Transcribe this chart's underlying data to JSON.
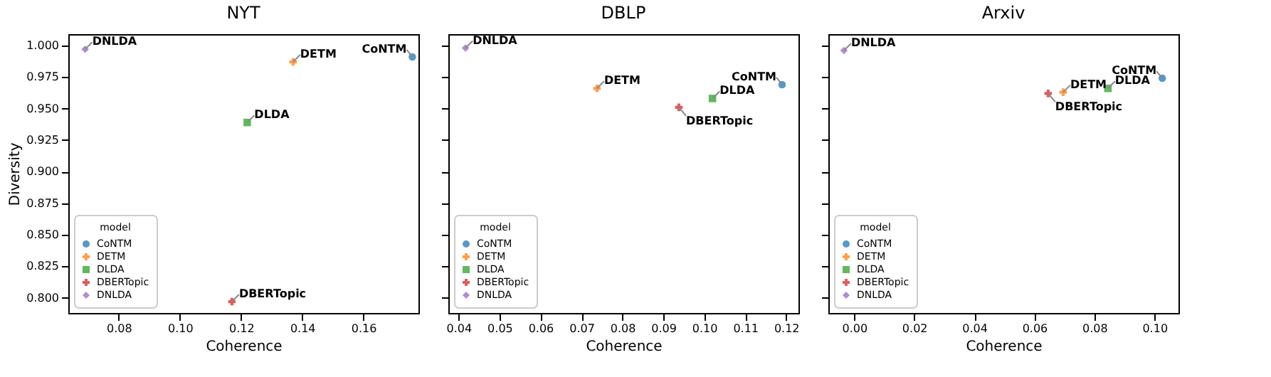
{
  "chart_data": [
    {
      "type": "scatter",
      "title": "NYT",
      "xlabel": "Coherence",
      "ylabel": "Diversity",
      "legend_title": "model",
      "legend": "bottom left",
      "grid": false,
      "xlim": [
        0.0635,
        0.178
      ],
      "xticks": [
        {
          "value": 0.08,
          "label": "0.08"
        },
        {
          "value": 0.1,
          "label": "0.10"
        },
        {
          "value": 0.12,
          "label": "0.12"
        },
        {
          "value": 0.14,
          "label": "0.14"
        },
        {
          "value": 0.16,
          "label": "0.16"
        }
      ],
      "ylim": [
        0.788,
        1.009
      ],
      "yticks": [
        {
          "value": 0.8,
          "label": "0.800"
        },
        {
          "value": 0.825,
          "label": "0.825"
        },
        {
          "value": 0.85,
          "label": "0.850"
        },
        {
          "value": 0.875,
          "label": "0.875"
        },
        {
          "value": 0.9,
          "label": "0.900"
        },
        {
          "value": 0.925,
          "label": "0.925"
        },
        {
          "value": 0.95,
          "label": "0.950"
        },
        {
          "value": 0.975,
          "label": "0.975"
        },
        {
          "value": 1.0,
          "label": "1.000"
        }
      ],
      "series": [
        {
          "name": "CoNTM",
          "color": "#1f77b4",
          "marker": "circle",
          "x": [
            0.176
          ],
          "values": [
            0.991
          ]
        },
        {
          "name": "DETM",
          "color": "#ff7f0e",
          "marker": "cross",
          "x": [
            0.137
          ],
          "values": [
            0.987
          ]
        },
        {
          "name": "DLDA",
          "color": "#2ca02c",
          "marker": "square",
          "x": [
            0.122
          ],
          "values": [
            0.939
          ]
        },
        {
          "name": "DBERTopic",
          "color": "#d62728",
          "marker": "cross",
          "x": [
            0.117
          ],
          "values": [
            0.797
          ]
        },
        {
          "name": "DNLDA",
          "color": "#9467bd",
          "marker": "diamond",
          "x": [
            0.069
          ],
          "values": [
            0.997
          ]
        }
      ],
      "annotations": [
        {
          "text": "CoNTM",
          "x": 0.176,
          "y": 0.991
        },
        {
          "text": "DETM",
          "x": 0.137,
          "y": 0.987
        },
        {
          "text": "DLDA",
          "x": 0.122,
          "y": 0.939
        },
        {
          "text": "DBERTopic",
          "x": 0.117,
          "y": 0.797
        },
        {
          "text": "DNLDA",
          "x": 0.069,
          "y": 0.997
        }
      ]
    },
    {
      "type": "scatter",
      "title": "DBLP",
      "xlabel": "Coherence",
      "legend_title": "model",
      "legend": "bottom left",
      "grid": false,
      "tick_labels": "x",
      "xlim": [
        0.0375,
        0.123
      ],
      "xticks": [
        0.04,
        0.05,
        0.06,
        0.07,
        0.08,
        0.09,
        {
          "value": 0.1,
          "label": "0.10"
        },
        0.11,
        0.12
      ],
      "ylim": [
        0.788,
        1.009
      ],
      "yticks": [
        {
          "value": 0.8,
          "label": null
        },
        {
          "value": 0.825,
          "label": null
        },
        {
          "value": 0.85,
          "label": null
        },
        {
          "value": 0.875,
          "label": null
        },
        {
          "value": 0.9,
          "label": null
        },
        {
          "value": 0.925,
          "label": null
        },
        {
          "value": 0.95,
          "label": null
        },
        {
          "value": 0.975,
          "label": null
        },
        {
          "value": 1.0,
          "label": null
        }
      ],
      "series": [
        {
          "name": "CoNTM",
          "color": "#1f77b4",
          "marker": "circle",
          "x": [
            0.119
          ],
          "values": [
            0.969
          ]
        },
        {
          "name": "DETM",
          "color": "#ff7f0e",
          "marker": "cross",
          "x": [
            0.0738
          ],
          "values": [
            0.966
          ]
        },
        {
          "name": "DLDA",
          "color": "#2ca02c",
          "marker": "square",
          "x": [
            0.102
          ],
          "values": [
            0.958
          ]
        },
        {
          "name": "DBERTopic",
          "color": "#d62728",
          "marker": "cross",
          "x": [
            0.0938
          ],
          "values": [
            0.951
          ]
        },
        {
          "name": "DNLDA",
          "color": "#9467bd",
          "marker": "diamond",
          "x": [
            0.0417
          ],
          "values": [
            0.998
          ]
        }
      ],
      "annotations": [
        {
          "text": "CoNTM",
          "x": 0.119,
          "y": 0.969
        },
        {
          "text": "DETM",
          "x": 0.0738,
          "y": 0.966
        },
        {
          "text": "DLDA",
          "x": 0.102,
          "y": 0.958
        },
        {
          "text": "DBERTopic",
          "x": 0.0938,
          "y": 0.951
        },
        {
          "text": "DNLDA",
          "x": 0.0417,
          "y": 0.998
        }
      ]
    },
    {
      "type": "scatter",
      "title": "Arxiv",
      "xlabel": "Coherence",
      "legend_title": "model",
      "legend": "bottom left",
      "grid": false,
      "tick_labels": "x",
      "xlim": [
        -0.0086,
        0.108
      ],
      "xticks": [
        {
          "value": 0.0,
          "label": "0.00"
        },
        0.02,
        0.04,
        0.06,
        0.08,
        {
          "value": 0.1,
          "label": "0.10"
        }
      ],
      "ylim": [
        0.788,
        1.009
      ],
      "yticks": [
        {
          "value": 0.8,
          "label": null
        },
        {
          "value": 0.825,
          "label": null
        },
        {
          "value": 0.85,
          "label": null
        },
        {
          "value": 0.875,
          "label": null
        },
        {
          "value": 0.9,
          "label": null
        },
        {
          "value": 0.925,
          "label": null
        },
        {
          "value": 0.95,
          "label": null
        },
        {
          "value": 0.975,
          "label": null
        },
        {
          "value": 1.0,
          "label": null
        }
      ],
      "series": [
        {
          "name": "CoNTM",
          "color": "#1f77b4",
          "marker": "circle",
          "x": [
            0.1026
          ],
          "values": [
            0.974
          ]
        },
        {
          "name": "DETM",
          "color": "#ff7f0e",
          "marker": "cross",
          "x": [
            0.0696
          ],
          "values": [
            0.963
          ]
        },
        {
          "name": "DLDA",
          "color": "#2ca02c",
          "marker": "square",
          "x": [
            0.0845
          ],
          "values": [
            0.966
          ]
        },
        {
          "name": "DBERTopic",
          "color": "#d62728",
          "marker": "cross",
          "x": [
            0.0646
          ],
          "values": [
            0.962
          ]
        },
        {
          "name": "DNLDA",
          "color": "#9467bd",
          "marker": "diamond",
          "x": [
            -0.0034
          ],
          "values": [
            0.996
          ]
        }
      ],
      "annotations": [
        {
          "text": "CoNTM",
          "x": 0.1026,
          "y": 0.974
        },
        {
          "text": "DETM",
          "x": 0.0696,
          "y": 0.963
        },
        {
          "text": "DLDA",
          "x": 0.0845,
          "y": 0.966
        },
        {
          "text": "DBERTopic",
          "x": 0.0646,
          "y": 0.962
        },
        {
          "text": "DNLDA",
          "x": -0.0034,
          "y": 0.996
        }
      ]
    }
  ]
}
